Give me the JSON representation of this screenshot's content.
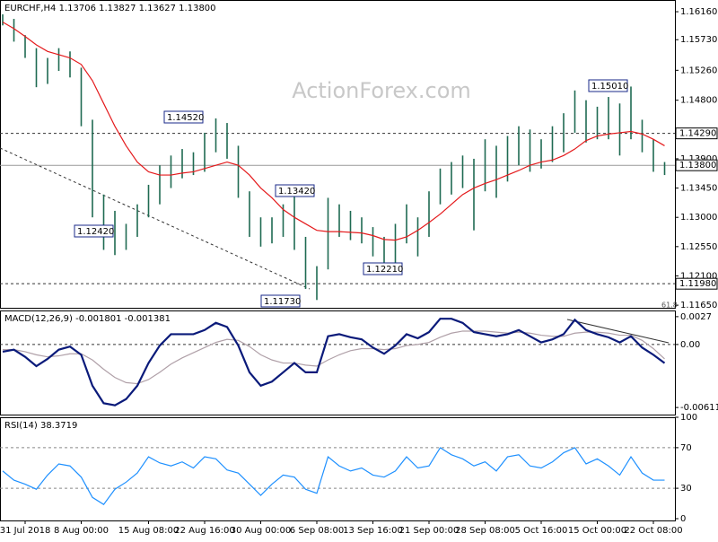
{
  "chart_data": [
    {
      "type": "ohlc",
      "title": "EURCHF,H4  1.13706 1.13827 1.13627 1.13800",
      "watermark": "ActionForex.com",
      "note": "61.8",
      "color": "#1f6b52",
      "categories": [
        null,
        null,
        "31 Jul 2018",
        null,
        null,
        null,
        null,
        "8 Aug 00:00",
        null,
        null,
        null,
        null,
        null,
        "15 Aug 08:00",
        null,
        null,
        null,
        null,
        "22 Aug 16:00",
        null,
        null,
        null,
        null,
        "30 Aug 00:00",
        null,
        null,
        null,
        null,
        "6 Sep 08:00",
        null,
        null,
        null,
        null,
        "13 Sep 16:00",
        null,
        null,
        null,
        null,
        "21 Sep 00:00",
        null,
        null,
        null,
        null,
        "28 Sep 08:00",
        null,
        null,
        null,
        null,
        "5 Oct 16:00",
        null,
        null,
        null,
        null,
        "15 Oct 00:00",
        null,
        null,
        null,
        null,
        "22 Oct 08:00",
        null
      ],
      "high": [
        1.1612,
        1.1605,
        1.158,
        1.156,
        1.1545,
        1.156,
        1.1555,
        1.153,
        1.145,
        1.1335,
        1.131,
        1.129,
        1.132,
        1.135,
        1.138,
        1.1395,
        1.1405,
        1.14,
        1.143,
        1.1452,
        1.1445,
        1.141,
        1.134,
        1.13,
        1.13,
        1.132,
        1.1342,
        1.127,
        1.1225,
        1.133,
        1.132,
        1.131,
        1.13,
        1.1285,
        1.127,
        1.129,
        1.132,
        1.13,
        1.134,
        1.1375,
        1.1385,
        1.1395,
        1.139,
        1.142,
        1.141,
        1.1425,
        1.144,
        1.1435,
        1.142,
        1.144,
        1.146,
        1.1495,
        1.148,
        1.147,
        1.1485,
        1.1475,
        1.1501,
        1.145,
        1.142,
        1.1385
      ],
      "low": [
        1.1595,
        1.157,
        1.1545,
        1.15,
        1.1505,
        1.1525,
        1.1515,
        1.144,
        1.13,
        1.125,
        1.1242,
        1.125,
        1.127,
        1.13,
        1.132,
        1.1345,
        1.136,
        1.1365,
        1.137,
        1.14,
        1.139,
        1.133,
        1.127,
        1.1255,
        1.126,
        1.127,
        1.125,
        1.119,
        1.1173,
        1.122,
        1.127,
        1.1265,
        1.126,
        1.124,
        1.1221,
        1.1225,
        1.126,
        1.124,
        1.127,
        1.132,
        1.1335,
        1.1345,
        1.128,
        1.134,
        1.133,
        1.1355,
        1.138,
        1.137,
        1.1375,
        1.1385,
        1.14,
        1.143,
        1.1415,
        1.142,
        1.142,
        1.1395,
        1.142,
        1.14,
        1.137,
        1.1365
      ],
      "ma": {
        "color": "#e41a1c",
        "values": [
          1.16,
          1.159,
          1.1578,
          1.1565,
          1.1555,
          1.155,
          1.1545,
          1.1535,
          1.151,
          1.1475,
          1.144,
          1.141,
          1.1385,
          1.137,
          1.1365,
          1.1365,
          1.1368,
          1.137,
          1.1375,
          1.138,
          1.1385,
          1.138,
          1.1365,
          1.1345,
          1.133,
          1.1312,
          1.13,
          1.129,
          1.128,
          1.1278,
          1.1278,
          1.1277,
          1.1276,
          1.1272,
          1.1266,
          1.1265,
          1.127,
          1.128,
          1.1292,
          1.1305,
          1.132,
          1.1335,
          1.1345,
          1.1352,
          1.1358,
          1.1365,
          1.1372,
          1.138,
          1.1385,
          1.1388,
          1.1395,
          1.1405,
          1.1418,
          1.1425,
          1.1428,
          1.143,
          1.1432,
          1.1428,
          1.142,
          1.141
        ]
      },
      "ylim": [
        1.1161,
        1.1634
      ],
      "yticks": [
        {
          "value": 1.1616,
          "label": "1.16160"
        },
        {
          "value": 1.1573,
          "label": "1.15730"
        },
        {
          "value": 1.1526,
          "label": "1.15260"
        },
        {
          "value": 1.148,
          "label": "1.14800"
        },
        {
          "value": 1.139,
          "label": "1.13900"
        },
        {
          "value": 1.1345,
          "label": "1.13450"
        },
        {
          "value": 1.13,
          "label": "1.13000"
        },
        {
          "value": 1.1255,
          "label": "1.12550"
        },
        {
          "value": 1.121,
          "label": "1.12100"
        },
        {
          "value": 1.1165,
          "label": "1.11650"
        }
      ],
      "levels": [
        {
          "value": 1.1429,
          "label": "1.14290",
          "style": "dashed"
        },
        {
          "value": 1.138,
          "label": "1.13800",
          "style": "solid"
        },
        {
          "value": 1.1198,
          "label": "1.11980",
          "style": "dashed"
        }
      ],
      "annotations": [
        {
          "value": 1.1452,
          "label": "1.14520"
        },
        {
          "value": 1.1242,
          "label": "1.12420"
        },
        {
          "value": 1.1342,
          "label": "1.13420"
        },
        {
          "value": 1.1173,
          "label": "1.11730"
        },
        {
          "value": 1.1221,
          "label": "1.12210"
        },
        {
          "value": 1.1501,
          "label": "1.15010"
        }
      ]
    },
    {
      "type": "macd",
      "title": "MACD(12,26,9) -0.001801 -0.001381",
      "series": [
        {
          "color": "#0a1a7a",
          "values": [
            -0.0007,
            -0.0005,
            -0.0012,
            -0.0021,
            -0.0014,
            -0.0005,
            -0.0002,
            -0.001,
            -0.004,
            -0.0057,
            -0.0059,
            -0.0053,
            -0.004,
            -0.0018,
            -0.0001,
            0.001,
            0.001,
            0.001,
            0.0014,
            0.0021,
            0.0017,
            -0.0001,
            -0.0027,
            -0.004,
            -0.0036,
            -0.0027,
            -0.0018,
            -0.0027,
            -0.0027,
            0.0008,
            0.001,
            0.0007,
            0.0005,
            -0.0003,
            -0.0009,
            -0.0001,
            0.001,
            0.0006,
            0.0012,
            0.0025,
            0.0025,
            0.0021,
            0.0012,
            0.001,
            0.0008,
            0.001,
            0.0014,
            0.0008,
            0.0002,
            0.0005,
            0.001,
            0.0024,
            0.0014,
            0.001,
            0.0007,
            0.0002,
            0.0008,
            -0.0003,
            -0.001,
            -0.0018
          ]
        },
        {
          "color": "#b0a0a8",
          "values": [
            -0.0005,
            -0.0005,
            -0.0007,
            -0.001,
            -0.0012,
            -0.0011,
            -0.0009,
            -0.0009,
            -0.0015,
            -0.0024,
            -0.0032,
            -0.0037,
            -0.0038,
            -0.0034,
            -0.0027,
            -0.0019,
            -0.0013,
            -0.0008,
            -0.0003,
            0.0002,
            0.0005,
            0.0004,
            -0.0002,
            -0.001,
            -0.0015,
            -0.0018,
            -0.0018,
            -0.002,
            -0.0021,
            -0.0015,
            -0.001,
            -0.0006,
            -0.0004,
            -0.0004,
            -0.0005,
            -0.0004,
            -0.0001,
            0.0,
            0.0002,
            0.0007,
            0.0011,
            0.0013,
            0.0013,
            0.0013,
            0.0012,
            0.0011,
            0.0012,
            0.0011,
            0.0009,
            0.0008,
            0.0008,
            0.0011,
            0.0012,
            0.0012,
            0.0011,
            0.0009,
            0.0009,
            0.0004,
            -0.0004,
            -0.0014
          ]
        }
      ],
      "ylim": [
        -0.0068,
        0.0033
      ],
      "yticks": [
        0.0027,
        {
          "value": 0,
          "label": "0.00"
        },
        -0.006114
      ],
      "zero_line": true
    },
    {
      "type": "rsi",
      "title": "RSI(14) 38.3719",
      "series": [
        {
          "color": "#1e90ff",
          "values": [
            47,
            38,
            34,
            29,
            43,
            54,
            52,
            41,
            21,
            14,
            29,
            36,
            45,
            61,
            55,
            52,
            56,
            50,
            61,
            59,
            48,
            45,
            34,
            23,
            34,
            43,
            41,
            29,
            25,
            61,
            52,
            47,
            50,
            43,
            41,
            47,
            61,
            50,
            52,
            70,
            63,
            59,
            52,
            56,
            47,
            61,
            63,
            52,
            50,
            56,
            65,
            70,
            54,
            59,
            52,
            43,
            61,
            45,
            38,
            38
          ]
        }
      ],
      "ylim": [
        0,
        100
      ],
      "yticks": [
        100,
        70,
        30,
        0
      ],
      "guides": [
        70,
        30
      ]
    }
  ]
}
